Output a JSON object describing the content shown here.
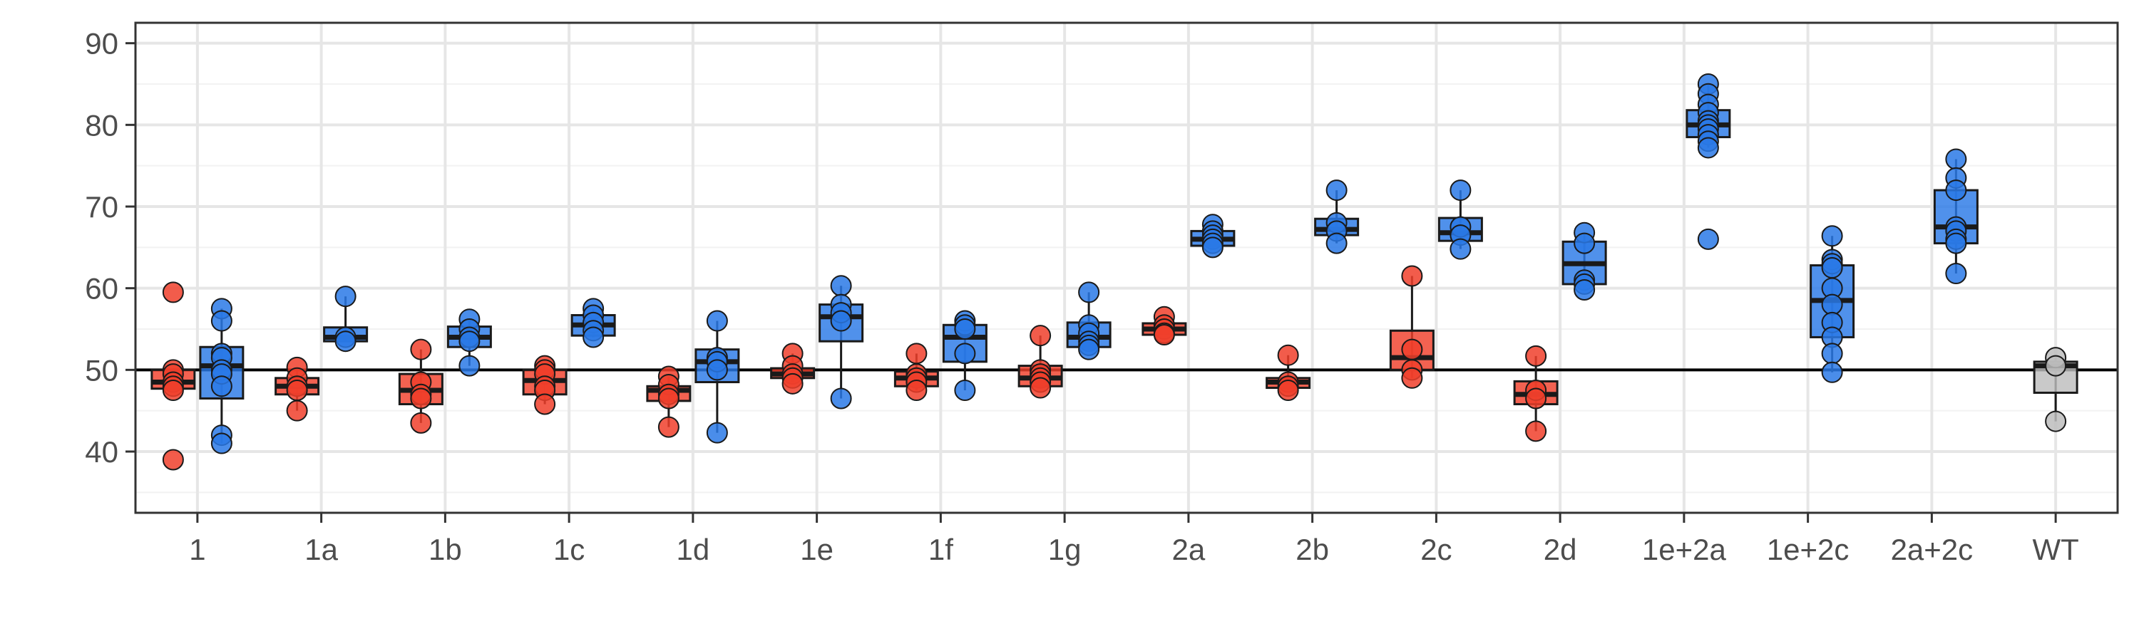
{
  "chart_data": {
    "type": "boxplot",
    "title": "",
    "xlabel": "",
    "ylabel": "",
    "ylim": [
      32.5,
      92.5
    ],
    "yticks": [
      40,
      50,
      60,
      70,
      80,
      90
    ],
    "reference_line": 50,
    "grid": true,
    "legend": "none",
    "colors": {
      "red": "#f0402b",
      "blue": "#2a79e6",
      "grey": "#bdbdbd",
      "grid_major": "#e6e6e6",
      "grid_minor": "#f2f2f2",
      "axis": "#333333"
    },
    "categories": [
      "1",
      "1a",
      "1b",
      "1c",
      "1d",
      "1e",
      "1f",
      "1g",
      "2a",
      "2b",
      "2c",
      "2d",
      "1e+2a",
      "1e+2c",
      "2a+2c",
      "WT"
    ],
    "groups": [
      {
        "category": "1",
        "color": "red",
        "box": {
          "min": 47.5,
          "q1": 47.7,
          "median": 48.5,
          "q3": 50.0,
          "max": 50.2
        },
        "points": [
          59.5,
          50.0,
          49.5,
          48.5,
          48.0,
          47.5,
          39.0
        ]
      },
      {
        "category": "1",
        "color": "blue",
        "box": {
          "min": 41.0,
          "q1": 46.5,
          "median": 50.5,
          "q3": 52.8,
          "max": 57.5
        },
        "points": [
          57.5,
          56.0,
          52.0,
          51.5,
          50.0,
          49.5,
          48.0,
          42.0,
          41.0
        ]
      },
      {
        "category": "1a",
        "color": "red",
        "box": {
          "min": 45.0,
          "q1": 47.0,
          "median": 48.0,
          "q3": 49.0,
          "max": 50.3
        },
        "points": [
          50.3,
          49.0,
          48.0,
          47.5,
          45.0
        ]
      },
      {
        "category": "1a",
        "color": "blue",
        "box": {
          "min": 53.5,
          "q1": 53.5,
          "median": 54.0,
          "q3": 55.2,
          "max": 59.0
        },
        "points": [
          59.0,
          54.0,
          53.5
        ]
      },
      {
        "category": "1b",
        "color": "red",
        "box": {
          "min": 43.5,
          "q1": 45.8,
          "median": 47.5,
          "q3": 49.5,
          "max": 52.5
        },
        "points": [
          52.5,
          48.5,
          47.0,
          46.5,
          43.5
        ]
      },
      {
        "category": "1b",
        "color": "blue",
        "box": {
          "min": 50.5,
          "q1": 52.8,
          "median": 54.0,
          "q3": 55.3,
          "max": 56.2
        },
        "points": [
          56.2,
          55.0,
          54.0,
          53.5,
          50.5
        ]
      },
      {
        "category": "1c",
        "color": "red",
        "box": {
          "min": 45.8,
          "q1": 47.0,
          "median": 48.7,
          "q3": 50.0,
          "max": 50.5
        },
        "points": [
          50.5,
          50.0,
          49.5,
          48.0,
          47.5,
          45.8
        ]
      },
      {
        "category": "1c",
        "color": "blue",
        "box": {
          "min": 54.0,
          "q1": 54.2,
          "median": 55.5,
          "q3": 56.7,
          "max": 57.5
        },
        "points": [
          57.5,
          56.7,
          55.8,
          54.8,
          54.0
        ]
      },
      {
        "category": "1d",
        "color": "red",
        "box": {
          "min": 43.0,
          "q1": 46.2,
          "median": 47.5,
          "q3": 48.0,
          "max": 49.2
        },
        "points": [
          49.2,
          48.2,
          47.0,
          46.5,
          43.0
        ]
      },
      {
        "category": "1d",
        "color": "blue",
        "box": {
          "min": 42.3,
          "q1": 48.5,
          "median": 51.0,
          "q3": 52.5,
          "max": 56.0
        },
        "points": [
          56.0,
          51.5,
          51.0,
          50.0,
          42.3
        ]
      },
      {
        "category": "1e",
        "color": "red",
        "box": {
          "min": 48.5,
          "q1": 49.0,
          "median": 49.5,
          "q3": 50.2,
          "max": 52.0
        },
        "points": [
          52.0,
          50.5,
          49.5,
          49.0,
          48.3
        ]
      },
      {
        "category": "1e",
        "color": "blue",
        "box": {
          "min": 46.5,
          "q1": 53.5,
          "median": 56.5,
          "q3": 58.0,
          "max": 60.3
        },
        "points": [
          60.3,
          58.0,
          57.0,
          56.0,
          46.5
        ]
      },
      {
        "category": "1f",
        "color": "red",
        "box": {
          "min": 47.5,
          "q1": 48.0,
          "median": 49.0,
          "q3": 49.8,
          "max": 52.0
        },
        "points": [
          52.0,
          49.5,
          49.0,
          48.5,
          47.5
        ]
      },
      {
        "category": "1f",
        "color": "blue",
        "box": {
          "min": 47.5,
          "q1": 51.0,
          "median": 54.0,
          "q3": 55.5,
          "max": 56.0
        },
        "points": [
          56.0,
          55.5,
          55.0,
          52.0,
          47.5
        ]
      },
      {
        "category": "1g",
        "color": "red",
        "box": {
          "min": 47.8,
          "q1": 48.0,
          "median": 49.0,
          "q3": 50.5,
          "max": 54.2
        },
        "points": [
          54.2,
          50.0,
          49.5,
          49.0,
          48.5,
          47.8
        ]
      },
      {
        "category": "1g",
        "color": "blue",
        "box": {
          "min": 52.5,
          "q1": 52.8,
          "median": 54.0,
          "q3": 55.8,
          "max": 59.5
        },
        "points": [
          59.5,
          55.5,
          54.5,
          53.5,
          53.0,
          52.5
        ]
      },
      {
        "category": "2a",
        "color": "red",
        "box": {
          "min": 54.3,
          "q1": 54.3,
          "median": 55.0,
          "q3": 55.7,
          "max": 56.5
        },
        "points": [
          56.5,
          55.5,
          55.0,
          54.5,
          54.3
        ]
      },
      {
        "category": "2a",
        "color": "blue",
        "box": {
          "min": 65.0,
          "q1": 65.2,
          "median": 66.0,
          "q3": 67.0,
          "max": 67.8
        },
        "points": [
          67.8,
          67.0,
          66.5,
          66.0,
          65.5,
          65.0
        ]
      },
      {
        "category": "2b",
        "color": "red",
        "box": {
          "min": 47.5,
          "q1": 47.8,
          "median": 48.5,
          "q3": 49.0,
          "max": 51.8
        },
        "points": [
          51.8,
          48.5,
          48.0,
          47.5
        ]
      },
      {
        "category": "2b",
        "color": "blue",
        "box": {
          "min": 65.5,
          "q1": 66.5,
          "median": 67.2,
          "q3": 68.5,
          "max": 72.0
        },
        "points": [
          72.0,
          68.0,
          67.0,
          65.5
        ]
      },
      {
        "category": "2c",
        "color": "red",
        "box": {
          "min": 49.0,
          "q1": 50.0,
          "median": 51.5,
          "q3": 54.8,
          "max": 61.5
        },
        "points": [
          61.5,
          52.5,
          50.0,
          49.0
        ]
      },
      {
        "category": "2c",
        "color": "blue",
        "box": {
          "min": 64.8,
          "q1": 65.8,
          "median": 66.8,
          "q3": 68.6,
          "max": 72.0
        },
        "points": [
          72.0,
          67.5,
          66.5,
          64.8
        ]
      },
      {
        "category": "2d",
        "color": "red",
        "box": {
          "min": 42.5,
          "q1": 45.8,
          "median": 47.0,
          "q3": 48.6,
          "max": 51.7
        },
        "points": [
          51.7,
          47.5,
          46.5,
          42.5
        ]
      },
      {
        "category": "2d",
        "color": "blue",
        "box": {
          "min": 59.8,
          "q1": 60.5,
          "median": 63.0,
          "q3": 65.7,
          "max": 66.8
        },
        "points": [
          66.8,
          65.5,
          61.0,
          60.5,
          59.8
        ]
      },
      {
        "category": "1e+2a",
        "color": "red",
        "box": null,
        "points": []
      },
      {
        "category": "1e+2a",
        "color": "blue",
        "box": {
          "min": 77.2,
          "q1": 78.5,
          "median": 80.0,
          "q3": 81.8,
          "max": 85.0
        },
        "points": [
          85.0,
          83.8,
          82.5,
          81.5,
          80.5,
          80.0,
          79.5,
          78.8,
          78.0,
          77.2,
          66.0
        ]
      },
      {
        "category": "1e+2c",
        "color": "red",
        "box": null,
        "points": []
      },
      {
        "category": "1e+2c",
        "color": "blue",
        "box": {
          "min": 49.7,
          "q1": 54.0,
          "median": 58.5,
          "q3": 62.8,
          "max": 66.4
        },
        "points": [
          66.4,
          63.5,
          63.0,
          62.5,
          60.0,
          58.0,
          55.8,
          54.0,
          52.0,
          49.7
        ]
      },
      {
        "category": "2a+2c",
        "color": "red",
        "box": null,
        "points": []
      },
      {
        "category": "2a+2c",
        "color": "blue",
        "box": {
          "min": 61.8,
          "q1": 65.5,
          "median": 67.5,
          "q3": 72.0,
          "max": 75.8
        },
        "points": [
          75.8,
          73.5,
          72.0,
          67.5,
          67.0,
          66.0,
          65.5,
          61.8
        ]
      },
      {
        "category": "WT",
        "color": "grey",
        "box": {
          "min": 43.7,
          "q1": 47.2,
          "median": 50.5,
          "q3": 51.0,
          "max": 51.5
        },
        "points": [
          51.5,
          50.5,
          43.7
        ]
      }
    ]
  }
}
